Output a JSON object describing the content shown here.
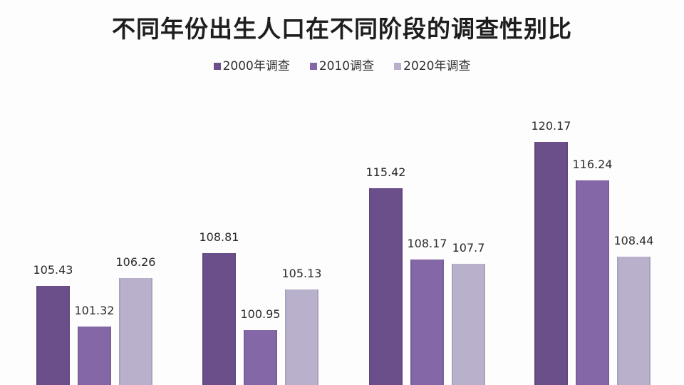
{
  "title": "不同年份出生人口在不同阶段的调查性别比",
  "legend": [
    {
      "label": "2000年调查",
      "color": "#6b4f8a"
    },
    {
      "label": "2010调查",
      "color": "#8467a6"
    },
    {
      "label": "2020年调查",
      "color": "#b9b0cb"
    }
  ],
  "chart_data": {
    "type": "bar",
    "title": "不同年份出生人口在不同阶段的调查性别比",
    "xlabel": "",
    "ylabel": "",
    "categories": [
      "",
      "",
      "",
      ""
    ],
    "series": [
      {
        "name": "2000年调查",
        "values": [
          105.43,
          108.81,
          115.42,
          120.17
        ],
        "color": "#6b4f8a"
      },
      {
        "name": "2010调查",
        "values": [
          101.32,
          100.95,
          108.17,
          116.24
        ],
        "color": "#8467a6"
      },
      {
        "name": "2020年调查",
        "values": [
          106.26,
          105.13,
          107.7,
          108.44
        ],
        "color": "#b9b0cb"
      }
    ],
    "data_labels": true,
    "grid": false,
    "legend_position": "top",
    "ylim": [
      95.35,
      122
    ]
  }
}
